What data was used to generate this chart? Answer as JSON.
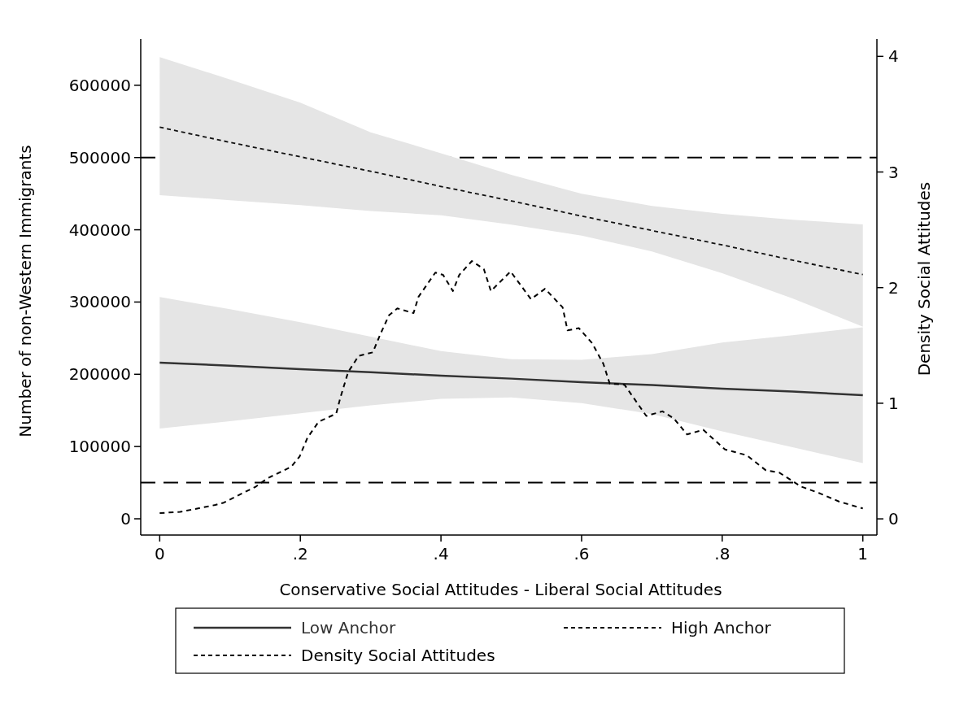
{
  "chart_data": {
    "type": "line",
    "xlabel": "Conservative Social Attitudes - Liberal Social Attitudes",
    "ylabel": "Number of non-Western Immigrants",
    "y2label": "Density Social Attitudes",
    "xlim": [
      -0.027,
      1.02
    ],
    "xticks": [
      0,
      {
        "value": 0.2,
        "label": ".2"
      },
      {
        "value": 0.4,
        "label": ".4"
      },
      {
        "value": 0.6,
        "label": ".6"
      },
      {
        "value": 0.8,
        "label": ".8"
      },
      1
    ],
    "ylim": [
      -22500,
      664000
    ],
    "yticks": [
      0,
      100000,
      200000,
      300000,
      400000,
      500000,
      600000
    ],
    "y2lim": [
      -0.14,
      4.15
    ],
    "y2ticks": [
      0,
      1,
      2,
      3,
      4
    ],
    "grid": false,
    "legend": "bottom",
    "marker": "none",
    "ref_lines": [
      {
        "axis": "y",
        "value": 500000,
        "color": "#000000",
        "line_style": "dashed"
      },
      {
        "axis": "y",
        "value": 50000,
        "color": "#000000",
        "line_style": "dashed"
      }
    ],
    "series": [
      {
        "name": "Low Anchor",
        "color": "#333333",
        "line_style": "solid",
        "x": [
          0,
          0.1,
          0.2,
          0.3,
          0.4,
          0.5,
          0.6,
          0.7,
          0.8,
          0.9,
          1
        ],
        "values": [
          216000,
          212000,
          207000,
          203000,
          198000,
          194000,
          189000,
          185000,
          180000,
          176000,
          171000
        ],
        "lower": [
          125000,
          135000,
          146000,
          157000,
          166000,
          168000,
          160000,
          145000,
          121000,
          99000,
          77000
        ],
        "upper": [
          307000,
          290000,
          272000,
          252000,
          232000,
          221000,
          220000,
          228000,
          244000,
          254000,
          265000
        ]
      },
      {
        "name": "High Anchor",
        "color": "#111111",
        "line_style": "dashed",
        "x": [
          0,
          0.1,
          0.2,
          0.3,
          0.4,
          0.5,
          0.6,
          0.7,
          0.8,
          0.9,
          1
        ],
        "values": [
          542000,
          521000,
          501000,
          481000,
          460000,
          440000,
          419000,
          399000,
          379000,
          358000,
          338000
        ],
        "lower": [
          448000,
          441000,
          434000,
          426000,
          420000,
          407000,
          392000,
          370000,
          340000,
          305000,
          266000
        ],
        "upper": [
          639000,
          608000,
          576000,
          535000,
          506000,
          476000,
          450000,
          433000,
          422000,
          414000,
          407500
        ]
      },
      {
        "name": "Density Social Attitudes",
        "color": "#000000",
        "line_style": "dashed",
        "axis": "y2",
        "x": [
          0,
          0.029,
          0.079,
          0.091,
          0.137,
          0.153,
          0.187,
          0.199,
          0.21,
          0.226,
          0.251,
          0.257,
          0.268,
          0.283,
          0.303,
          0.314,
          0.326,
          0.338,
          0.361,
          0.368,
          0.392,
          0.403,
          0.417,
          0.426,
          0.444,
          0.461,
          0.471,
          0.499,
          0.528,
          0.548,
          0.573,
          0.58,
          0.596,
          0.615,
          0.631,
          0.64,
          0.661,
          0.692,
          0.715,
          0.731,
          0.75,
          0.773,
          0.804,
          0.835,
          0.862,
          0.881,
          0.912,
          0.939,
          0.966,
          1
        ],
        "values": [
          0.05,
          0.06,
          0.12,
          0.14,
          0.28,
          0.35,
          0.45,
          0.54,
          0.7,
          0.84,
          0.91,
          1.05,
          1.27,
          1.41,
          1.44,
          1.6,
          1.76,
          1.82,
          1.78,
          1.92,
          2.13,
          2.11,
          1.97,
          2.11,
          2.23,
          2.16,
          1.97,
          2.14,
          1.9,
          1.99,
          1.83,
          1.63,
          1.65,
          1.52,
          1.34,
          1.17,
          1.16,
          0.89,
          0.93,
          0.87,
          0.73,
          0.77,
          0.6,
          0.55,
          0.42,
          0.4,
          0.28,
          0.22,
          0.15,
          0.09
        ]
      }
    ]
  }
}
